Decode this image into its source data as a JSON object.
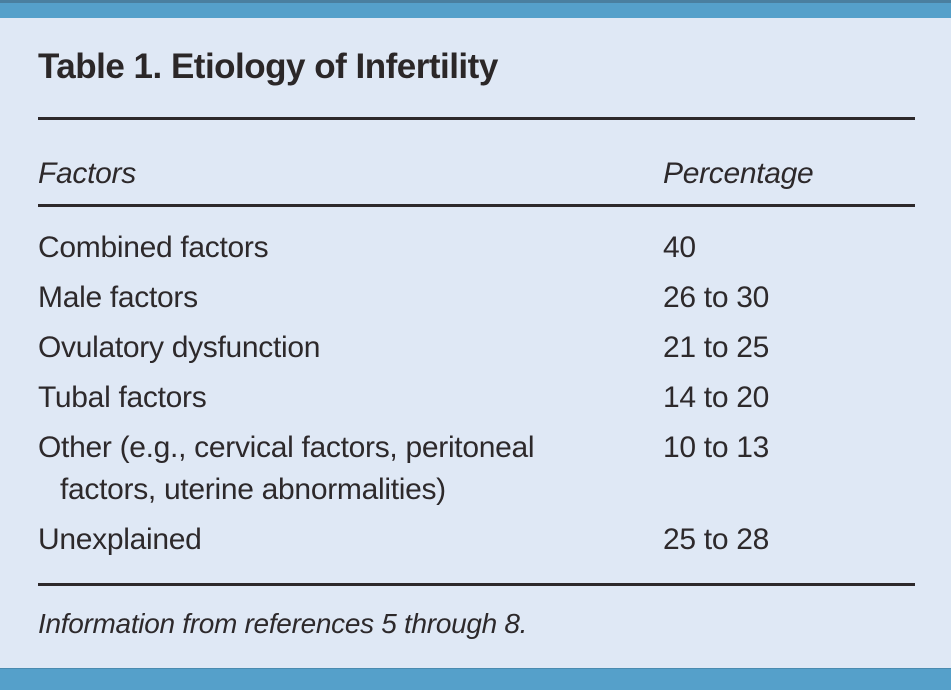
{
  "colors": {
    "card_background": "#dfe8f5",
    "accent_bar": "#55a0ca",
    "accent_bar_edge": "#4a7f9f",
    "text": "#2d292b",
    "rule": "#2d292b"
  },
  "table": {
    "title": "Table 1. Etiology of Infertility",
    "columns": {
      "factor": "Factors",
      "percentage": "Percentage"
    },
    "rows": [
      {
        "factor": "Combined factors",
        "percentage": "40"
      },
      {
        "factor": "Male factors",
        "percentage": "26 to 30"
      },
      {
        "factor": "Ovulatory dysfunction",
        "percentage": "21 to 25"
      },
      {
        "factor": "Tubal factors",
        "percentage": "14 to 20"
      },
      {
        "factor": "Other (e.g., cervical factors, peritoneal factors, uterine abnormalities)",
        "percentage": "10 to 13"
      },
      {
        "factor": "Unexplained",
        "percentage": "25 to 28"
      }
    ],
    "footnote": "Information from references 5 through 8."
  }
}
